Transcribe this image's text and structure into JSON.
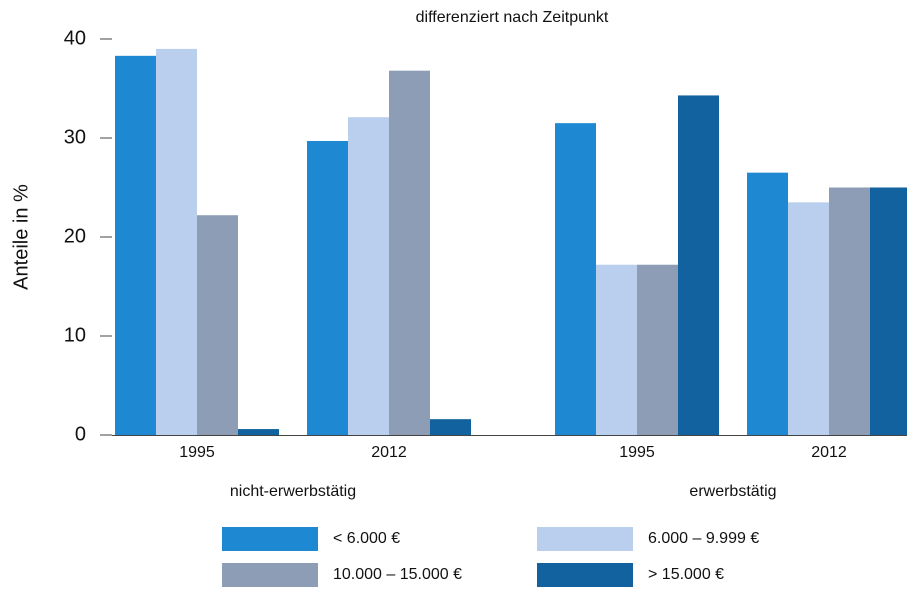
{
  "chart_data": {
    "type": "bar",
    "subtitle": "differenziert nach Zeitpunkt",
    "y_label": "Anteile in %",
    "categories": [
      "1995",
      "2012",
      "1995",
      "2012"
    ],
    "category_groups": [
      "nicht-erwerbstätig",
      "erwerbstätig"
    ],
    "series": [
      {
        "name": "< 6.000 €",
        "color": "#1e88d2",
        "values": [
          38.3,
          29.7,
          31.5,
          26.5
        ]
      },
      {
        "name": "6.000 – 9.999 €",
        "color": "#bacfee",
        "values": [
          39.0,
          32.1,
          17.2,
          23.5
        ]
      },
      {
        "name": "10.000 – 15.000 €",
        "color": "#8c9db5",
        "values": [
          22.2,
          36.8,
          17.2,
          25.0
        ]
      },
      {
        "name": "> 15.000 €",
        "color": "#11629e",
        "values": [
          0.6,
          1.6,
          34.3,
          25.0
        ]
      }
    ],
    "ylim": [
      0,
      40
    ],
    "yticks": [
      0,
      10,
      20,
      30,
      40
    ],
    "grid": false
  }
}
